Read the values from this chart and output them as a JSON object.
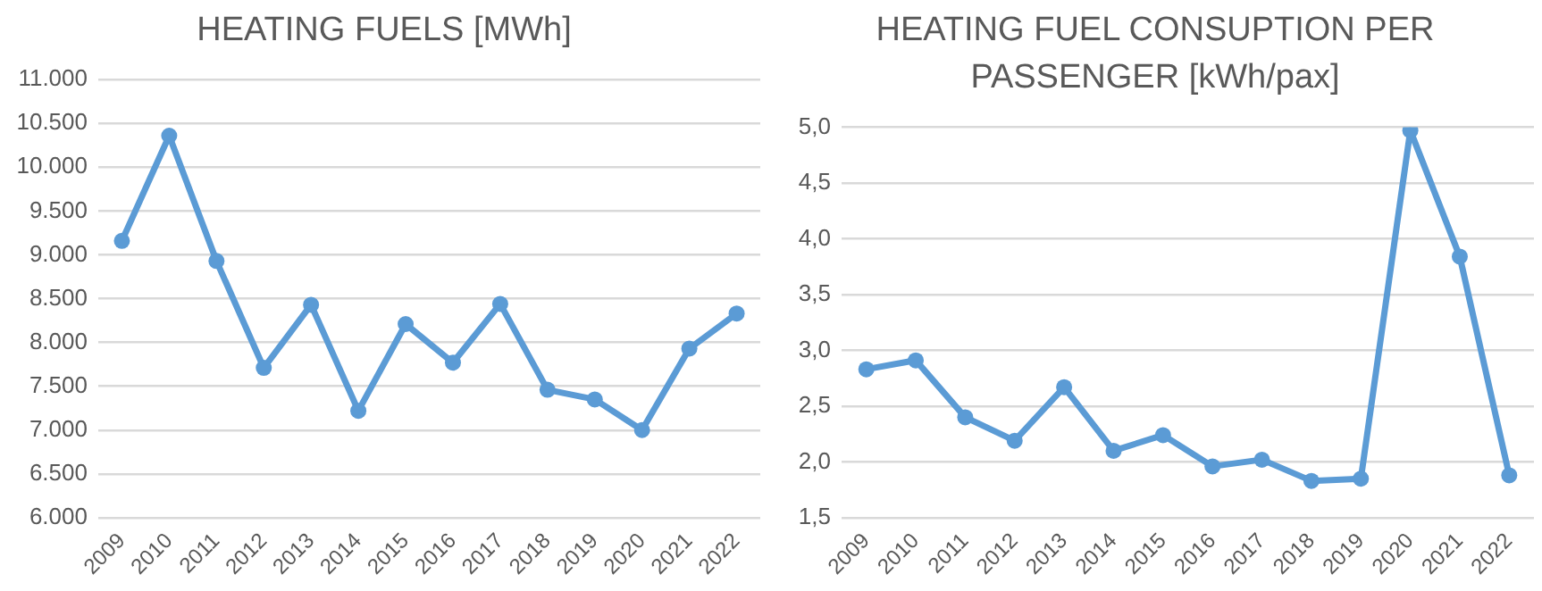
{
  "chart_data": [
    {
      "type": "line",
      "title": "HEATING FUELS [MWh]",
      "categories": [
        "2009",
        "2010",
        "2011",
        "2012",
        "2013",
        "2014",
        "2015",
        "2016",
        "2017",
        "2018",
        "2019",
        "2020",
        "2021",
        "2022"
      ],
      "series": [
        {
          "color": "#5b9bd5",
          "values": [
            9160,
            10360,
            8930,
            7710,
            8430,
            7220,
            8210,
            7770,
            8440,
            7460,
            7350,
            7000,
            7930,
            8330
          ]
        }
      ],
      "ylim": [
        6000,
        11000
      ],
      "yticks": [
        {
          "value": 6000,
          "label": "6.000"
        },
        {
          "value": 6500,
          "label": "6.500"
        },
        {
          "value": 7000,
          "label": "7.000"
        },
        {
          "value": 7500,
          "label": "7.500"
        },
        {
          "value": 8000,
          "label": "8.000"
        },
        {
          "value": 8500,
          "label": "8.500"
        },
        {
          "value": 9000,
          "label": "9.000"
        },
        {
          "value": 9500,
          "label": "9.500"
        },
        {
          "value": 10000,
          "label": "10.000"
        },
        {
          "value": 10500,
          "label": "10.500"
        },
        {
          "value": 11000,
          "label": "11.000"
        }
      ],
      "grid": "y",
      "marker": "circle"
    },
    {
      "type": "line",
      "title": "HEATING FUEL CONSUPTION PER PASSENGER [kWh/pax]",
      "categories": [
        "2009",
        "2010",
        "2011",
        "2012",
        "2013",
        "2014",
        "2015",
        "2016",
        "2017",
        "2018",
        "2019",
        "2020",
        "2021",
        "2022"
      ],
      "series": [
        {
          "color": "#5b9bd5",
          "values": [
            2.83,
            2.91,
            2.4,
            2.19,
            2.67,
            2.1,
            2.24,
            1.96,
            2.02,
            1.83,
            1.85,
            4.97,
            3.84,
            1.88
          ]
        }
      ],
      "ylim": [
        1.5,
        5
      ],
      "yticks": [
        {
          "value": 1.5,
          "label": "1,5"
        },
        {
          "value": 2,
          "label": "2,0"
        },
        {
          "value": 2.5,
          "label": "2,5"
        },
        {
          "value": 3,
          "label": "3,0"
        },
        {
          "value": 3.5,
          "label": "3,5"
        },
        {
          "value": 4,
          "label": "4,0"
        },
        {
          "value": 4.5,
          "label": "4,5"
        },
        {
          "value": 5,
          "label": "5,0"
        }
      ],
      "grid": "y",
      "marker": "circle"
    }
  ]
}
